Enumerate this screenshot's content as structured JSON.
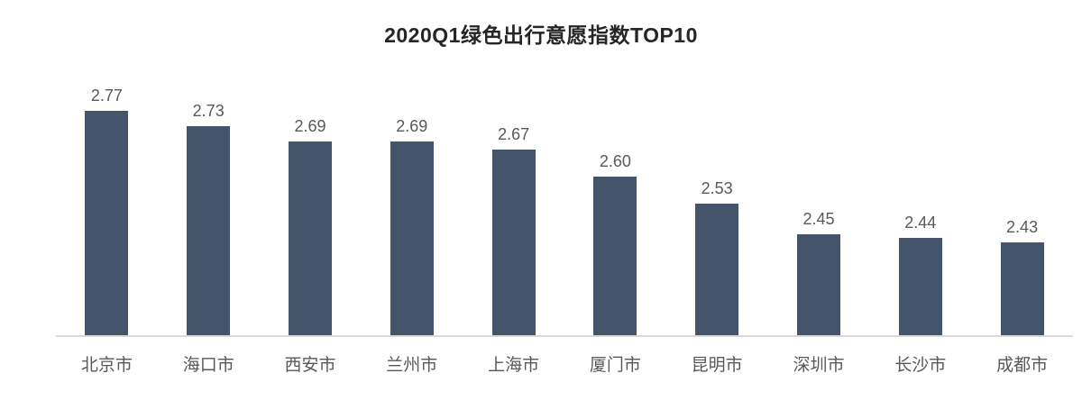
{
  "chart_data": {
    "type": "bar",
    "title": "2020Q1绿色出行意愿指数TOP10",
    "categories": [
      "北京市",
      "海口市",
      "西安市",
      "兰州市",
      "上海市",
      "厦门市",
      "昆明市",
      "深圳市",
      "长沙市",
      "成都市"
    ],
    "values": [
      2.77,
      2.73,
      2.69,
      2.69,
      2.67,
      2.6,
      2.53,
      2.45,
      2.44,
      2.43
    ],
    "value_labels": [
      "2.77",
      "2.73",
      "2.69",
      "2.69",
      "2.67",
      "2.60",
      "2.53",
      "2.45",
      "2.44",
      "2.43"
    ],
    "xlabel": "",
    "ylabel": "",
    "ylim": [
      2.19,
      2.92
    ],
    "y_axis_visible": false,
    "grid": false,
    "legend": "none",
    "colors": {
      "bar": "#44546A",
      "axis_line": "#D9D9D9",
      "value_label": "#595959",
      "category_label": "#595959",
      "title": "#262626"
    }
  }
}
